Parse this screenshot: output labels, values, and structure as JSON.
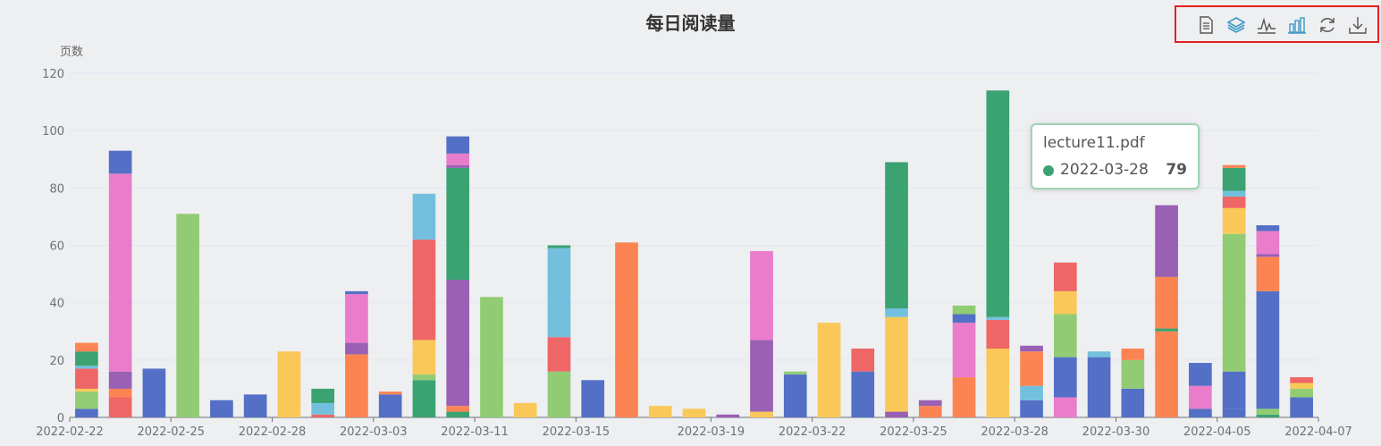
{
  "title": "每日阅读量",
  "toolbox": [
    {
      "name": "data-view-icon"
    },
    {
      "name": "stack-icon"
    },
    {
      "name": "line-chart-icon"
    },
    {
      "name": "bar-chart-icon"
    },
    {
      "name": "restore-icon"
    },
    {
      "name": "save-image-icon"
    }
  ],
  "tooltip": {
    "title": "lecture11.pdf",
    "series_date": "2022-03-28",
    "value": "79",
    "color": "#3ba272"
  },
  "colors": [
    "#5470c6",
    "#91cc75",
    "#fac858",
    "#ee6666",
    "#73c0de",
    "#3ba272",
    "#fc8452",
    "#9a60b4",
    "#ea7ccc"
  ],
  "chart_data": {
    "type": "bar",
    "stacked": true,
    "ylabel": "页数",
    "ylim": [
      0,
      120
    ],
    "yticks": [
      0,
      20,
      40,
      60,
      80,
      100,
      120
    ],
    "grid": "horizontal",
    "x_tick_labels": [
      "2022-02-22",
      "2022-02-25",
      "2022-02-28",
      "2022-03-03",
      "2022-03-11",
      "2022-03-15",
      "2022-03-19",
      "2022-03-22",
      "2022-03-25",
      "2022-03-28",
      "2022-03-30",
      "2022-04-05",
      "2022-04-07"
    ],
    "bars": [
      [
        [
          0,
          3
        ],
        [
          1,
          6
        ],
        [
          2,
          1
        ],
        [
          3,
          7
        ],
        [
          4,
          1
        ],
        [
          5,
          5
        ],
        [
          6,
          3
        ]
      ],
      [
        [
          3,
          7
        ],
        [
          6,
          3
        ],
        [
          7,
          6
        ],
        [
          8,
          69
        ],
        [
          0,
          8
        ]
      ],
      [
        [
          0,
          17
        ]
      ],
      [
        [
          1,
          71
        ]
      ],
      [
        [
          0,
          6
        ]
      ],
      [
        [
          0,
          8
        ]
      ],
      [
        [
          2,
          23
        ]
      ],
      [
        [
          3,
          1
        ],
        [
          4,
          4
        ],
        [
          5,
          5
        ]
      ],
      [
        [
          6,
          22
        ],
        [
          7,
          4
        ],
        [
          8,
          17
        ],
        [
          0,
          1
        ]
      ],
      [
        [
          0,
          8
        ],
        [
          6,
          1
        ]
      ],
      [
        [
          5,
          13
        ],
        [
          1,
          2
        ],
        [
          2,
          12
        ],
        [
          3,
          35
        ],
        [
          4,
          16
        ]
      ],
      [
        [
          5,
          2
        ],
        [
          6,
          2
        ],
        [
          7,
          44
        ],
        [
          0,
          0
        ],
        [
          1,
          0
        ],
        [
          2,
          0
        ],
        [
          3,
          0
        ],
        [
          4,
          0
        ],
        [
          5,
          39
        ],
        [
          6,
          0
        ],
        [
          7,
          1
        ],
        [
          8,
          4
        ],
        [
          0,
          6
        ]
      ],
      [
        [
          1,
          42
        ]
      ],
      [
        [
          2,
          5
        ]
      ],
      [
        [
          1,
          16
        ],
        [
          3,
          12
        ],
        [
          4,
          31
        ],
        [
          5,
          1
        ]
      ],
      [
        [
          0,
          13
        ]
      ],
      [
        [
          6,
          61
        ]
      ],
      [
        [
          2,
          4
        ]
      ],
      [
        [
          2,
          3
        ]
      ],
      [
        [
          7,
          1
        ]
      ],
      [
        [
          2,
          2
        ],
        [
          7,
          25
        ],
        [
          8,
          31
        ]
      ],
      [
        [
          0,
          15
        ],
        [
          1,
          1
        ]
      ],
      [
        [
          2,
          33
        ]
      ],
      [
        [
          0,
          16
        ],
        [
          3,
          8
        ]
      ],
      [
        [
          7,
          2
        ],
        [
          2,
          33
        ],
        [
          4,
          3
        ],
        [
          5,
          51
        ]
      ],
      [
        [
          6,
          4
        ],
        [
          7,
          2
        ]
      ],
      [
        [
          6,
          14
        ],
        [
          8,
          19
        ],
        [
          0,
          3
        ],
        [
          1,
          3
        ]
      ],
      [
        [
          2,
          24
        ],
        [
          3,
          10
        ],
        [
          4,
          1
        ],
        [
          5,
          79
        ]
      ],
      [
        [
          0,
          6
        ],
        [
          4,
          5
        ],
        [
          6,
          12
        ],
        [
          7,
          2
        ]
      ],
      [
        [
          8,
          7
        ],
        [
          0,
          14
        ],
        [
          1,
          15
        ],
        [
          2,
          8
        ],
        [
          3,
          10
        ]
      ],
      [
        [
          0,
          21
        ],
        [
          4,
          2
        ]
      ],
      [
        [
          0,
          10
        ],
        [
          1,
          10
        ],
        [
          6,
          4
        ]
      ],
      [
        [
          6,
          30
        ],
        [
          5,
          1
        ],
        [
          6,
          18
        ],
        [
          7,
          25
        ]
      ],
      [
        [
          0,
          3
        ],
        [
          8,
          8
        ],
        [
          0,
          8
        ]
      ],
      [
        [
          0,
          3
        ],
        [
          0,
          13
        ],
        [
          1,
          48
        ],
        [
          2,
          9
        ],
        [
          3,
          4
        ],
        [
          4,
          2
        ],
        [
          5,
          8
        ],
        [
          6,
          1
        ]
      ],
      [
        [
          5,
          1
        ],
        [
          1,
          2
        ],
        [
          0,
          41
        ],
        [
          6,
          12
        ],
        [
          7,
          1
        ],
        [
          8,
          8
        ],
        [
          0,
          2
        ]
      ],
      [
        [
          0,
          7
        ],
        [
          1,
          3
        ],
        [
          2,
          2
        ],
        [
          3,
          2
        ]
      ]
    ]
  }
}
